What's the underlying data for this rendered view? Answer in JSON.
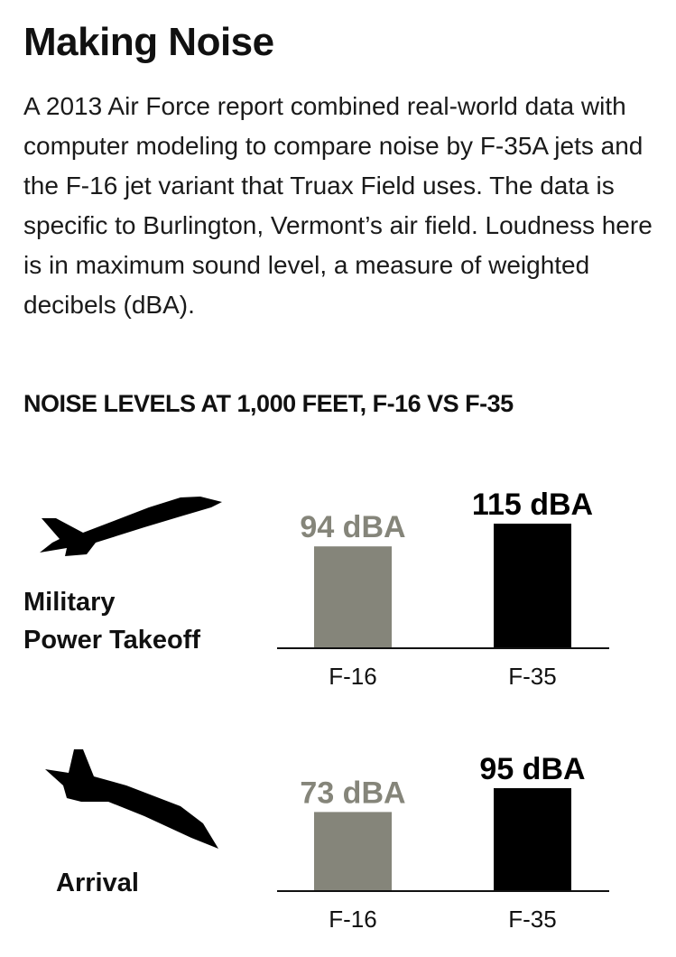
{
  "header": {
    "title": "Making Noise",
    "description": "A 2013 Air Force report combined real-world data with computer modeling to compare noise by F-35A jets and the F-16 jet variant that Truax Field uses. The data is specific to  Burlington, Vermont’s air field. Loudness here is in maximum sound level, a measure of weighted decibels (dBA).",
    "subheading": "NOISE LEVELS AT 1,000 FEET, F-16 VS F-35"
  },
  "colors": {
    "f16": "#85857a",
    "f35": "#000000"
  },
  "chart_data": [
    {
      "type": "bar",
      "panel": [
        "Military",
        "Power Takeoff"
      ],
      "icon": "jet-takeoff-icon",
      "categories": [
        "F-16",
        "F-35"
      ],
      "values": [
        94,
        115
      ],
      "labels": [
        "94 dBA",
        "115 dBA"
      ],
      "unit": "dBA"
    },
    {
      "type": "bar",
      "panel": [
        "Arrival"
      ],
      "icon": "jet-arrival-icon",
      "categories": [
        "F-16",
        "F-35"
      ],
      "values": [
        73,
        95
      ],
      "labels": [
        "73 dBA",
        "95 dBA"
      ],
      "unit": "dBA"
    }
  ]
}
